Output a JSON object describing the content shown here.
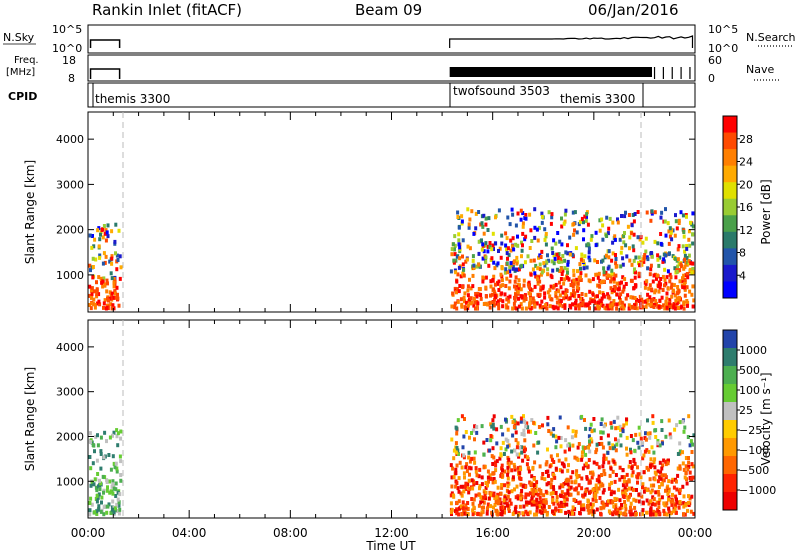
{
  "header": {
    "station": "Rankin Inlet (fitACF)",
    "beam": "Beam 09",
    "date": "06/Jan/2016"
  },
  "panels": {
    "nsky": {
      "label": "N.Sky",
      "ticks": [
        "10^5",
        "10^0"
      ]
    },
    "nsearch": {
      "label": "N.Search",
      "ticks": [
        "10^5",
        "10^0"
      ]
    },
    "freq": {
      "label_line1": "Freq.",
      "label_line2": "[MHz]",
      "ticks": [
        "18",
        "8"
      ]
    },
    "nave": {
      "label": "Nave",
      "ticks": [
        "60",
        "0"
      ]
    },
    "cpid": {
      "label": "CPID",
      "segments": [
        "themis 3300",
        "twofsound 3503",
        "themis 3300"
      ]
    }
  },
  "power_panel": {
    "ylabel": "Slant Range [km]",
    "colorbar_label": "Power [dB]",
    "colorbar_ticks": [
      "28",
      "24",
      "20",
      "16",
      "12",
      "8",
      "4"
    ],
    "colorbar_colors": [
      "#ff0000",
      "#ff4a00",
      "#ff7f00",
      "#ffaa00",
      "#e0e000",
      "#99cc33",
      "#4aa04a",
      "#2a7a6a",
      "#2255aa",
      "#1a1acc",
      "#0000ff"
    ]
  },
  "velocity_panel": {
    "ylabel": "Slant Range [km]",
    "colorbar_label": "Velocity [m s⁻¹]",
    "colorbar_ticks": [
      "1000",
      "500",
      "100",
      "25",
      "−25",
      "−100",
      "−500",
      "−1000"
    ],
    "colorbar_colors": [
      "#2244aa",
      "#2e7d6e",
      "#4caf50",
      "#66cc33",
      "#c0c0c0",
      "#ffcc00",
      "#ff9900",
      "#ff6600",
      "#ff2200",
      "#ee0000"
    ]
  },
  "chart_data": [
    {
      "type": "heatmap",
      "title": "Power",
      "xlabel": "Time UT",
      "ylabel": "Slant Range [km]",
      "x_ticks": [
        "00:00",
        "04:00",
        "08:00",
        "12:00",
        "16:00",
        "20:00",
        "00:00"
      ],
      "y_ticks": [
        1000,
        2000,
        3000,
        4000
      ],
      "xlim_hours": [
        0,
        24
      ],
      "ylim": [
        180,
        4600
      ],
      "colorbar_range": [
        0,
        30
      ],
      "scatter_blocks": [
        {
          "t_start": 0.0,
          "t_end": 1.25,
          "range_start": 300,
          "range_end": 2200,
          "typical_value": 22
        },
        {
          "t_start": 14.3,
          "t_end": 23.9,
          "range_start": 300,
          "range_end": 2500,
          "typical_value": 24
        }
      ],
      "cpid_boundaries_hours": [
        1.3,
        14.3,
        21.9
      ]
    },
    {
      "type": "heatmap",
      "title": "Velocity",
      "xlabel": "Time UT",
      "ylabel": "Slant Range [km]",
      "x_ticks": [
        "00:00",
        "04:00",
        "08:00",
        "12:00",
        "16:00",
        "20:00",
        "00:00"
      ],
      "y_ticks": [
        1000,
        2000,
        3000,
        4000
      ],
      "xlim_hours": [
        0,
        24
      ],
      "ylim": [
        180,
        4600
      ],
      "colorbar_range": [
        -1000,
        1000
      ],
      "scatter_blocks": [
        {
          "t_start": 0.0,
          "t_end": 1.25,
          "range_start": 300,
          "range_end": 2200,
          "typical_value": 100
        },
        {
          "t_start": 14.3,
          "t_end": 23.9,
          "range_start": 300,
          "range_end": 2500,
          "typical_value": -100
        }
      ],
      "cpid_boundaries_hours": [
        1.3,
        14.3,
        21.9
      ]
    }
  ]
}
